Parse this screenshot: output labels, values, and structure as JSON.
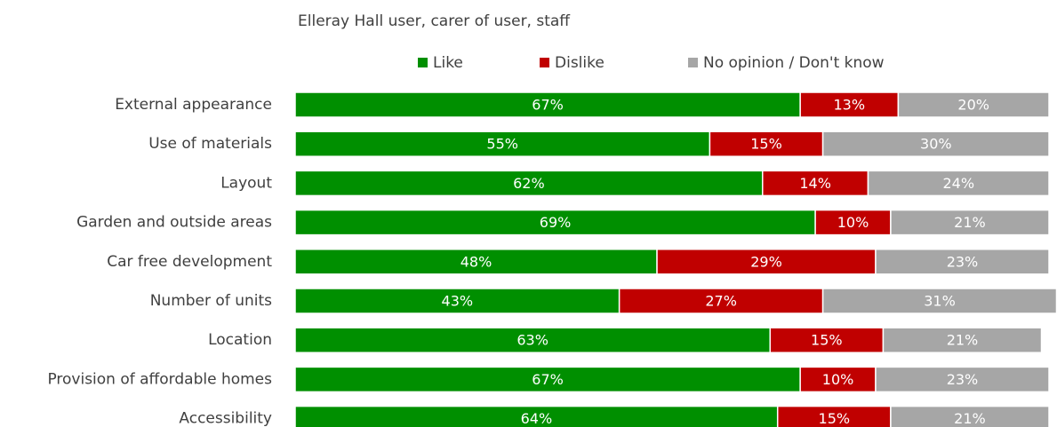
{
  "chart_data": {
    "type": "stacked-barh",
    "title": "Elleray Hall user, carer of user, staff",
    "categories": [
      "External appearance",
      "Use of materials",
      "Layout",
      "Garden and outside areas",
      "Car free development",
      "Number of units",
      "Location",
      "Provision of affordable homes",
      "Accessibility"
    ],
    "series": [
      {
        "name": "Like",
        "color": "#008f00",
        "values": [
          67,
          55,
          62,
          69,
          48,
          43,
          63,
          67,
          64
        ],
        "value_labels": [
          "67%",
          "55%",
          "62%",
          "69%",
          "48%",
          "43%",
          "63%",
          "67%",
          "64%"
        ]
      },
      {
        "name": "Dislike",
        "color": "#c00000",
        "values": [
          13,
          15,
          14,
          10,
          29,
          27,
          15,
          10,
          15
        ],
        "value_labels": [
          "13%",
          "15%",
          "14%",
          "10%",
          "29%",
          "27%",
          "15%",
          "10%",
          "15%"
        ]
      },
      {
        "name": "No opinion / Don't know",
        "color": "#a6a6a6",
        "values": [
          20,
          30,
          24,
          21,
          23,
          31,
          21,
          23,
          21
        ],
        "value_labels": [
          "20%",
          "30%",
          "24%",
          "21%",
          "23%",
          "31%",
          "21%",
          "23%",
          "21%"
        ]
      }
    ],
    "xlim": [
      0,
      100
    ],
    "legend": "top"
  }
}
